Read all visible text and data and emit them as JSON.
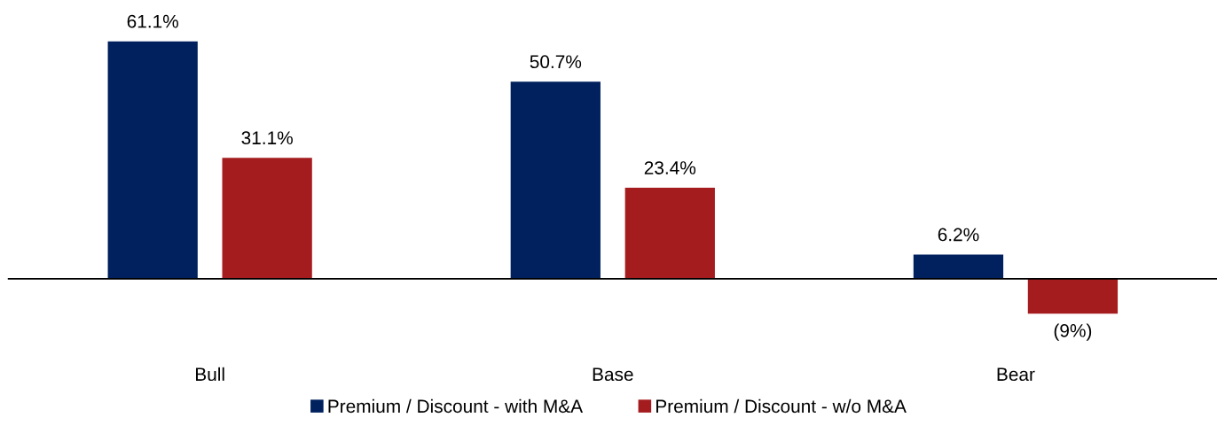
{
  "chart_data": {
    "type": "bar",
    "categories": [
      "Bull",
      "Base",
      "Bear"
    ],
    "series": [
      {
        "name": "Premium / Discount - with M&A",
        "color": "#00215e",
        "values": [
          61.1,
          50.7,
          6.2
        ],
        "value_labels": [
          "61.1%",
          "50.7%",
          "6.2%"
        ]
      },
      {
        "name": "Premium / Discount - w/o M&A",
        "color": "#a51c1f",
        "values": [
          31.1,
          23.4,
          -9
        ],
        "value_labels": [
          "31.1%",
          "23.4%",
          "(9%)"
        ]
      }
    ],
    "tick_labels": "x",
    "legend": "bottom",
    "grid": false
  }
}
